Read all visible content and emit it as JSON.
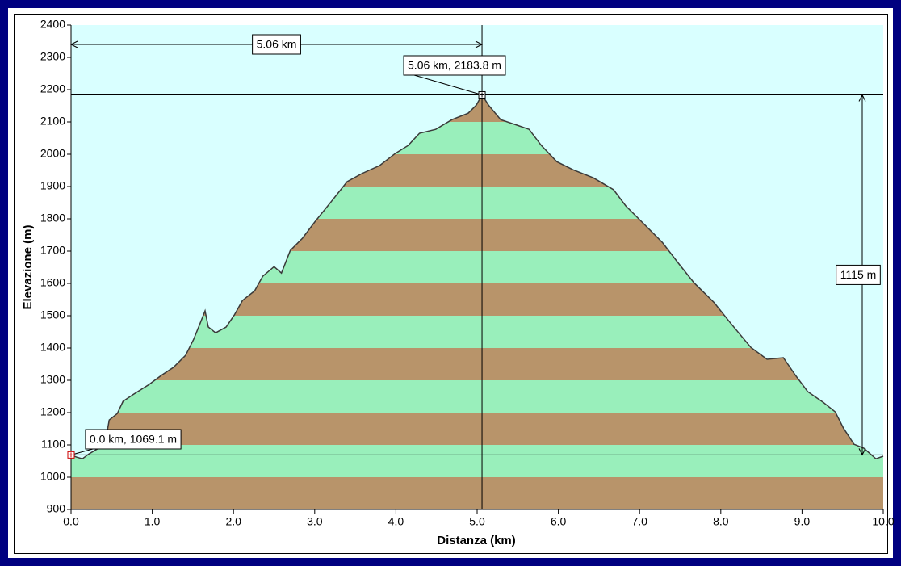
{
  "chart_data": {
    "type": "area",
    "x_label": "Distanza  (km)",
    "y_label": "Elevazione (m)",
    "x": [
      0.0,
      0.07,
      0.14,
      0.22,
      0.32,
      0.42,
      0.47,
      0.57,
      0.64,
      0.77,
      0.96,
      1.11,
      1.26,
      1.41,
      1.51,
      1.59,
      1.65,
      1.69,
      1.78,
      1.91,
      2.01,
      2.11,
      2.26,
      2.36,
      2.5,
      2.59,
      2.7,
      2.85,
      3.0,
      3.2,
      3.4,
      3.58,
      3.8,
      3.99,
      4.15,
      4.29,
      4.49,
      4.69,
      4.89,
      4.99,
      5.06,
      5.14,
      5.29,
      5.49,
      5.64,
      5.79,
      5.98,
      6.18,
      6.43,
      6.68,
      6.83,
      7.03,
      7.28,
      7.47,
      7.67,
      7.92,
      8.12,
      8.37,
      8.57,
      8.77,
      8.92,
      9.07,
      9.26,
      9.41,
      9.51,
      9.64,
      9.76,
      9.91,
      10.0
    ],
    "values": [
      1069.1,
      1062,
      1057,
      1072,
      1087,
      1107,
      1177,
      1197,
      1235,
      1257,
      1287,
      1315,
      1340,
      1377,
      1427,
      1477,
      1515,
      1465,
      1447,
      1465,
      1502,
      1547,
      1577,
      1622,
      1652,
      1632,
      1702,
      1740,
      1790,
      1852,
      1915,
      1940,
      1965,
      2002,
      2027,
      2065,
      2077,
      2107,
      2127,
      2152,
      2183.8,
      2152,
      2107,
      2090,
      2077,
      2027,
      1977,
      1952,
      1927,
      1890,
      1840,
      1790,
      1727,
      1665,
      1602,
      1540,
      1477,
      1402,
      1365,
      1370,
      1315,
      1265,
      1232,
      1202,
      1152,
      1102,
      1090,
      1057,
      1065
    ],
    "xlim": [
      0,
      10
    ],
    "ylim": [
      900,
      2400
    ],
    "xticks": [
      {
        "value": 0,
        "label": "0.0"
      },
      {
        "value": 1,
        "label": "1.0"
      },
      {
        "value": 2,
        "label": "2.0"
      },
      {
        "value": 3,
        "label": "3.0"
      },
      {
        "value": 4,
        "label": "4.0"
      },
      {
        "value": 5,
        "label": "5.0"
      },
      {
        "value": 6,
        "label": "6.0"
      },
      {
        "value": 7,
        "label": "7.0"
      },
      {
        "value": 8,
        "label": "8.0"
      },
      {
        "value": 9,
        "label": "9.0"
      },
      {
        "value": 10,
        "label": "10.0"
      }
    ],
    "yticks": [
      900,
      1000,
      1100,
      1200,
      1300,
      1400,
      1500,
      1600,
      1700,
      1800,
      1900,
      2000,
      2100,
      2200,
      2300,
      2400
    ],
    "band_colors": [
      "#b8946a",
      "#99efbb"
    ],
    "background": "#d9ffff",
    "line_color": "#3a3a3a",
    "markers": [
      {
        "x": 0.0,
        "y": 1069.1,
        "label": "0.0 km, 1069.1 m",
        "color": "#cc0000"
      },
      {
        "x": 5.06,
        "y": 2183.8,
        "label": "5.06 km, 2183.8 m",
        "color": "#000000"
      }
    ],
    "distance_label": "5.06 km",
    "height_label": "1115 m"
  }
}
